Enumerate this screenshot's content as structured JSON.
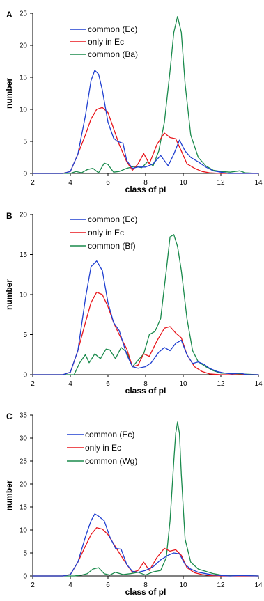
{
  "chart_data": [
    {
      "type": "line",
      "panel": "A",
      "xlabel": "class of pI",
      "ylabel": "number",
      "xlim": [
        2,
        14
      ],
      "ylim": [
        0,
        25
      ],
      "xticks": [
        2,
        4,
        6,
        8,
        10,
        12,
        14
      ],
      "yticks": [
        0,
        5,
        10,
        15,
        20,
        25
      ],
      "grid": false,
      "legend_position": "top-left",
      "series": [
        {
          "name": "common (Ec)",
          "color": "#1f3fd0",
          "x": [
            2,
            3.6,
            4,
            4.4,
            4.8,
            5.1,
            5.3,
            5.5,
            5.7,
            6.0,
            6.3,
            6.5,
            6.8,
            7.0,
            7.3,
            7.6,
            8.0,
            8.4,
            8.8,
            9.2,
            9.5,
            9.8,
            10.1,
            10.4,
            10.8,
            11.2,
            11.6,
            12.0,
            12.4,
            13.0,
            14
          ],
          "y": [
            0,
            0,
            0.3,
            3,
            9,
            14.5,
            16.1,
            15.5,
            13,
            8,
            5.5,
            5,
            4.7,
            2,
            0.8,
            1,
            1,
            1.5,
            2.8,
            1.2,
            3,
            5.2,
            3.5,
            2.5,
            1.8,
            1,
            0.4,
            0.2,
            0,
            0,
            0
          ]
        },
        {
          "name": "only in Ec",
          "color": "#e8151b",
          "x": [
            2,
            3.6,
            4,
            4.4,
            4.8,
            5.1,
            5.4,
            5.7,
            6.0,
            6.3,
            6.6,
            7.0,
            7.3,
            7.6,
            7.9,
            8.2,
            8.6,
            9.0,
            9.3,
            9.6,
            9.9,
            10.2,
            10.6,
            11.0,
            11.4,
            12.0,
            14
          ],
          "y": [
            0,
            0,
            0.3,
            3,
            6,
            8.5,
            10,
            10.3,
            9.5,
            7,
            4.5,
            1.8,
            0.5,
            1.5,
            3.1,
            1.5,
            4.5,
            6.3,
            5.6,
            5.4,
            3.5,
            1.5,
            0.8,
            0.3,
            0.1,
            0,
            0
          ]
        },
        {
          "name": "common (Ba)",
          "color": "#1a8a4c",
          "x": [
            2,
            4.0,
            4.3,
            4.6,
            4.9,
            5.2,
            5.5,
            5.8,
            6.0,
            6.3,
            6.6,
            7.0,
            7.4,
            7.8,
            8.1,
            8.4,
            8.7,
            9.0,
            9.3,
            9.5,
            9.7,
            9.9,
            10.1,
            10.4,
            10.8,
            11.2,
            11.6,
            12.0,
            12.5,
            13.0,
            13.3,
            14
          ],
          "y": [
            0,
            0,
            0.3,
            0.1,
            0.6,
            0.8,
            0.1,
            1.6,
            1.4,
            0.2,
            0.3,
            0.8,
            1.1,
            0.9,
            1.8,
            1.2,
            3.5,
            8,
            16,
            22,
            24.5,
            22,
            14,
            6,
            2.5,
            1.2,
            0.5,
            0.3,
            0.2,
            0.4,
            0.1,
            0
          ]
        }
      ]
    },
    {
      "type": "line",
      "panel": "B",
      "xlabel": "class of pI",
      "ylabel": "number",
      "xlim": [
        2,
        14
      ],
      "ylim": [
        0,
        20
      ],
      "xticks": [
        2,
        4,
        6,
        8,
        10,
        12,
        14
      ],
      "yticks": [
        0,
        5,
        10,
        15,
        20
      ],
      "grid": false,
      "legend_position": "top-left",
      "series": [
        {
          "name": "common (Ec)",
          "color": "#1f3fd0",
          "x": [
            2,
            3.6,
            4,
            4.4,
            4.8,
            5.1,
            5.4,
            5.7,
            6.0,
            6.3,
            6.6,
            7.0,
            7.3,
            7.6,
            8.0,
            8.3,
            8.7,
            9.0,
            9.3,
            9.6,
            9.9,
            10.2,
            10.5,
            10.8,
            11.1,
            11.4,
            11.8,
            12.2,
            12.6,
            13.0,
            13.4,
            14
          ],
          "y": [
            0,
            0,
            0.3,
            3,
            9.5,
            13.5,
            14.2,
            13,
            9,
            6.5,
            5.5,
            2.5,
            1,
            0.8,
            1,
            1.5,
            2.8,
            3.4,
            3.0,
            3.9,
            4.3,
            2.5,
            1.4,
            1.6,
            1.3,
            0.8,
            0.4,
            0.2,
            0.1,
            0.2,
            0,
            0
          ]
        },
        {
          "name": "only in Ec",
          "color": "#e8151b",
          "x": [
            2,
            3.6,
            4,
            4.4,
            4.8,
            5.1,
            5.4,
            5.7,
            6.0,
            6.3,
            6.6,
            7.0,
            7.3,
            7.6,
            7.9,
            8.2,
            8.6,
            9.0,
            9.3,
            9.6,
            9.9,
            10.2,
            10.6,
            11.0,
            11.4,
            12.0,
            14
          ],
          "y": [
            0,
            0,
            0.3,
            3,
            6.5,
            9,
            10.3,
            10,
            8.5,
            6.5,
            5,
            3.2,
            1,
            1.2,
            2.6,
            2.3,
            4.2,
            5.8,
            6.0,
            5.2,
            4.6,
            2.5,
            1.0,
            0.4,
            0.1,
            0,
            0
          ]
        },
        {
          "name": "common (Bf)",
          "color": "#1a8a4c",
          "x": [
            2,
            4.2,
            4.5,
            4.8,
            5.0,
            5.3,
            5.6,
            5.9,
            6.1,
            6.4,
            6.7,
            7.0,
            7.3,
            7.6,
            7.9,
            8.2,
            8.5,
            8.8,
            9.1,
            9.3,
            9.5,
            9.7,
            9.9,
            10.2,
            10.5,
            10.8,
            11.2,
            11.6,
            12.0,
            14
          ],
          "y": [
            0,
            0,
            1.5,
            2.5,
            1.5,
            2.6,
            2.0,
            3.2,
            3.1,
            2,
            3.4,
            2.8,
            1,
            1.8,
            2.6,
            5.0,
            5.4,
            7,
            13,
            17.2,
            17.5,
            16,
            13,
            7,
            3,
            1.6,
            1.0,
            0.5,
            0.2,
            0
          ]
        }
      ]
    },
    {
      "type": "line",
      "panel": "C",
      "xlabel": "class of pI",
      "ylabel": "number",
      "xlim": [
        2,
        14
      ],
      "ylim": [
        0,
        35
      ],
      "xticks": [
        2,
        4,
        6,
        8,
        10,
        12,
        14
      ],
      "yticks": [
        0,
        5,
        10,
        15,
        20,
        25,
        30,
        35
      ],
      "grid": false,
      "legend_position": "top-left",
      "series": [
        {
          "name": "common (Ec)",
          "color": "#1f3fd0",
          "x": [
            2,
            3.6,
            4,
            4.4,
            4.8,
            5.1,
            5.3,
            5.5,
            5.8,
            6.1,
            6.4,
            6.7,
            7.0,
            7.3,
            7.6,
            8.0,
            8.4,
            8.8,
            9.2,
            9.5,
            9.8,
            10.1,
            10.4,
            10.8,
            11.2,
            11.6,
            12.0,
            12.5,
            13.0,
            14
          ],
          "y": [
            0,
            0,
            0.3,
            3,
            8.5,
            12,
            13.5,
            13,
            12,
            8.5,
            6,
            5.8,
            2.5,
            1,
            0.8,
            1.2,
            2,
            3.5,
            4.5,
            5,
            4.8,
            2.5,
            1.5,
            0.8,
            0.5,
            0.2,
            0.1,
            0,
            0.1,
            0
          ]
        },
        {
          "name": "only in Ec",
          "color": "#e8151b",
          "x": [
            2,
            3.6,
            4,
            4.4,
            4.8,
            5.1,
            5.4,
            5.7,
            6.0,
            6.3,
            6.6,
            7.0,
            7.3,
            7.6,
            7.9,
            8.2,
            8.6,
            9.0,
            9.3,
            9.6,
            9.9,
            10.2,
            10.6,
            11.0,
            11.4,
            12.0,
            14
          ],
          "y": [
            0,
            0,
            0.3,
            3,
            6.5,
            9,
            10.5,
            10.2,
            9,
            7,
            5,
            2.5,
            0.8,
            1.2,
            3,
            1.2,
            4,
            6,
            5.4,
            5.7,
            4.5,
            1.8,
            0.7,
            0.3,
            0.1,
            0,
            0
          ]
        },
        {
          "name": "common (Wg)",
          "color": "#1a8a4c",
          "x": [
            2,
            4.2,
            4.6,
            4.9,
            5.2,
            5.5,
            5.8,
            6.1,
            6.4,
            6.8,
            7.2,
            7.6,
            8.0,
            8.4,
            8.8,
            9.1,
            9.3,
            9.5,
            9.6,
            9.7,
            9.8,
            9.9,
            10.1,
            10.4,
            10.8,
            11.2,
            11.6,
            12.0,
            12.5,
            13.0,
            14
          ],
          "y": [
            0,
            0,
            0.2,
            0.5,
            1.5,
            1.8,
            0.5,
            0.2,
            0.8,
            0.3,
            0.5,
            0.8,
            0.2,
            0.9,
            1.2,
            4,
            12,
            25,
            31,
            33.5,
            31,
            22,
            8,
            3,
            1.5,
            1.0,
            0.5,
            0.2,
            0.1,
            0.1,
            0
          ]
        }
      ]
    }
  ]
}
